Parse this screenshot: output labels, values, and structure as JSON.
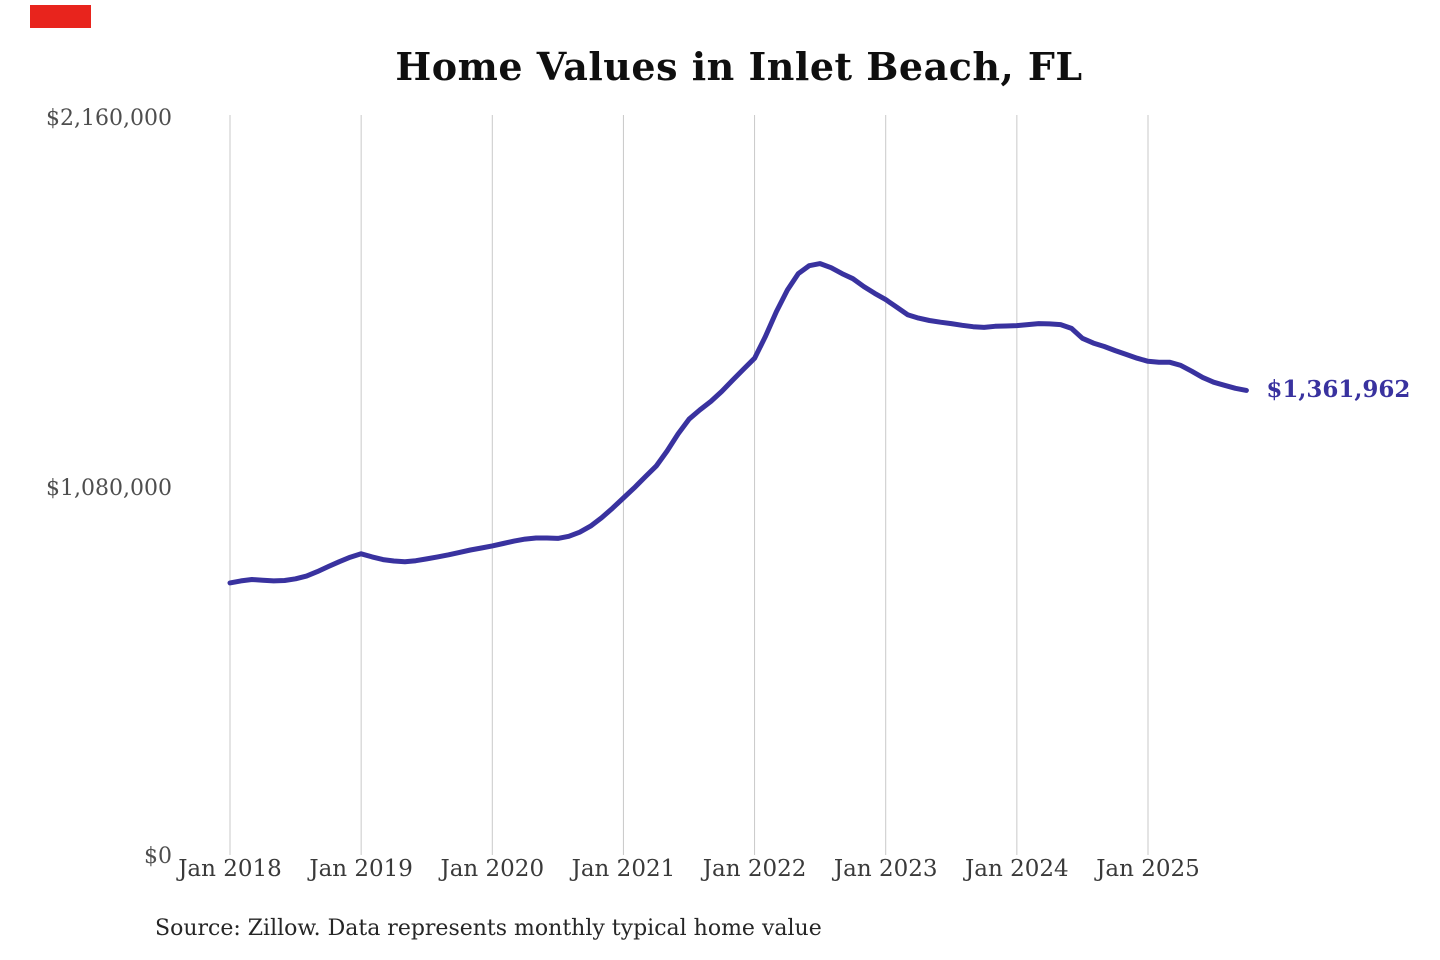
{
  "title": "Home Values in Inlet Beach, FL",
  "end_label": "$1,361,962",
  "source_note": "Source: Zillow. Data represents monthly typical home value",
  "marker": {
    "color": "#e8241d"
  },
  "colors": {
    "line": "#39329f",
    "grid": "#c9c9c9",
    "title": "#0f0f0f",
    "y_label": "#4e4e4e",
    "x_label": "#3a3a3a",
    "end_label": "#39329f",
    "source": "#262626"
  },
  "chart_data": {
    "type": "line",
    "title": "Home Values in Inlet Beach, FL",
    "xlabel": "",
    "ylabel": "",
    "ylim": [
      0,
      2160000
    ],
    "grid": "vertical-only",
    "legend": "none",
    "x_tick_labels": [
      "Jan 2018",
      "Jan 2019",
      "Jan 2020",
      "Jan 2021",
      "Jan 2022",
      "Jan 2023",
      "Jan 2024",
      "Jan 2025"
    ],
    "y_tick_labels": [
      "$0",
      "$1,080,000",
      "$2,160,000"
    ],
    "end_value": 1361962,
    "end_value_label": "$1,361,962",
    "series": [
      {
        "name": "Monthly typical home value",
        "start_month": "2018-01",
        "end_month": "2025-10",
        "values": [
          800000,
          806000,
          810000,
          808000,
          806000,
          807000,
          812000,
          820000,
          833000,
          848000,
          862000,
          875000,
          885000,
          876000,
          868000,
          864000,
          862000,
          865000,
          870000,
          876000,
          882000,
          889000,
          896000,
          902000,
          908000,
          915000,
          922000,
          928000,
          931000,
          931000,
          930000,
          936000,
          948000,
          966000,
          990000,
          1018000,
          1048000,
          1078000,
          1110000,
          1141000,
          1185000,
          1235000,
          1278000,
          1305000,
          1330000,
          1359000,
          1392000,
          1424000,
          1456000,
          1520000,
          1592000,
          1655000,
          1703000,
          1726000,
          1732000,
          1720000,
          1703000,
          1688000,
          1665000,
          1645000,
          1627000,
          1605000,
          1583000,
          1573000,
          1566000,
          1561000,
          1557000,
          1552000,
          1548000,
          1546000,
          1549000,
          1550000,
          1551000,
          1554000,
          1557000,
          1556000,
          1554000,
          1543000,
          1514000,
          1500000,
          1490000,
          1478000,
          1467000,
          1456000,
          1447000,
          1444000,
          1444000,
          1435000,
          1418000,
          1400000,
          1386000,
          1377000,
          1368000,
          1361962
        ]
      }
    ]
  }
}
